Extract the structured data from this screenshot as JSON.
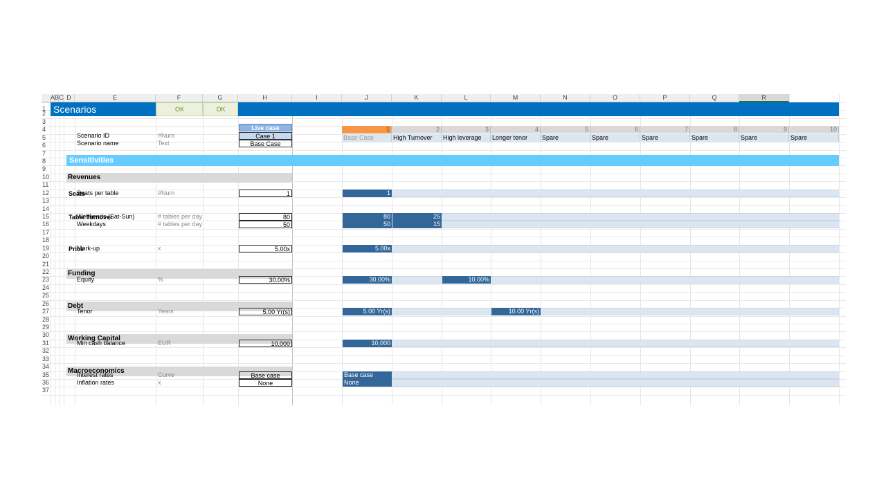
{
  "column_headers": [
    "A",
    "B",
    "C",
    "D",
    "E",
    "F",
    "G",
    "H",
    "I",
    "J",
    "K",
    "L",
    "M",
    "N",
    "O",
    "P",
    "Q",
    "R"
  ],
  "row_numbers": [
    "1",
    "2",
    "3",
    "4",
    "5",
    "6",
    "7",
    "8",
    "9",
    "10",
    "11",
    "12",
    "13",
    "14",
    "15",
    "16",
    "17",
    "18",
    "19",
    "20",
    "21",
    "22",
    "23",
    "24",
    "25",
    "26",
    "27",
    "28",
    "29",
    "30",
    "31",
    "32",
    "33",
    "34",
    "35",
    "36",
    "37"
  ],
  "title": "Scenarios",
  "checks": {
    "e1": "OK",
    "f1": "OK"
  },
  "live_case_label": "Live case",
  "scenario_id": {
    "label": "Scenario ID",
    "unit": "#Num",
    "value": "Case 1"
  },
  "scenario_name": {
    "label": "Scenario name",
    "unit": "Text",
    "value": "Base Case"
  },
  "scenario_numbers": [
    "1",
    "2",
    "3",
    "4",
    "5",
    "6",
    "7",
    "8",
    "9",
    "10"
  ],
  "scenario_names": [
    "Base Case",
    "High Turnover",
    "High leverage",
    "Longer tenor",
    "Spare",
    "Spare",
    "Spare",
    "Spare",
    "Spare",
    "Spare"
  ],
  "sensitivities_title": "Sensitivities",
  "sections": {
    "revenues": "Revenues",
    "funding": "Funding",
    "debt": "Debt",
    "working_capital": "Working Capital",
    "macro": "Macroeconomics"
  },
  "subsections": {
    "seats": "Seats",
    "turnover": "Table Turnover",
    "price": "Price"
  },
  "rows": {
    "seats_per_table": {
      "label": "Seats per table",
      "unit": "#Num",
      "live": "1",
      "base": "1"
    },
    "weekends": {
      "label": "Weekends (Sat-Sun)",
      "unit": "# tables per day",
      "live": "80",
      "base": "80",
      "alt": "25"
    },
    "weekdays": {
      "label": "Weekdays",
      "unit": "# tables per day",
      "live": "50",
      "base": "50",
      "alt": "15"
    },
    "markup": {
      "label": "Mark-up",
      "unit": "x",
      "live": "5.00x",
      "base": "5.00x"
    },
    "equity": {
      "label": "Equity",
      "unit": "%",
      "live": "30.00%",
      "base": "30.00%",
      "alt": "10.00%"
    },
    "tenor": {
      "label": "Tenor",
      "unit": "Years",
      "live": "5.00 Yr(s)",
      "base": "5.00 Yr(s)",
      "alt": "10.00 Yr(s)"
    },
    "min_cash": {
      "label": "Min cash balance",
      "unit": "EUR",
      "live": "10,000",
      "base": "10,000"
    },
    "interest": {
      "label": "Interest rates",
      "unit": "Curve",
      "live": "Base case",
      "base": "Base case"
    },
    "inflation": {
      "label": "Inflation rates",
      "unit": "x",
      "live": "None",
      "base": "None"
    }
  },
  "colors": {
    "title_bar": "#0070c0",
    "sensitivities_bar": "#66ccff",
    "section_bar": "#d9d9d9",
    "check_ok": "#ebf1de",
    "live_case": "#8db4e2",
    "case_id_cell": "#c5d9f1",
    "active_scenario": "#f79646",
    "scenario_header": "#d9d9d9",
    "scenario_name_band": "#dce6f1",
    "base_value": "#336699",
    "input_band": "#dce6f1"
  }
}
